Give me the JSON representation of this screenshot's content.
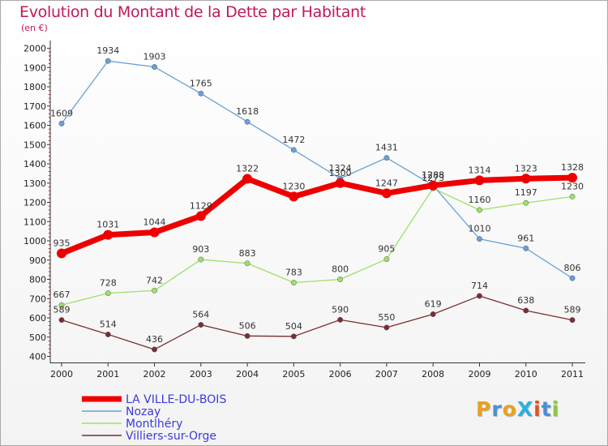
{
  "title": "Evolution du Montant de la Dette par Habitant",
  "subtitle": "(en €)",
  "logo": {
    "text": "ProXiti",
    "letter_colors": [
      "#e8a21c",
      "#4a8fd6",
      "#e8a21c",
      "#2bb0e0",
      "#e84f1c",
      "#4a8fd6",
      "#8cc63f"
    ]
  },
  "chart_data": {
    "type": "line",
    "x": [
      "2000",
      "2001",
      "2002",
      "2003",
      "2004",
      "2005",
      "2006",
      "2007",
      "2008",
      "2009",
      "2010",
      "2011"
    ],
    "ylim": [
      400,
      2000
    ],
    "yticks": [
      400,
      500,
      600,
      700,
      800,
      900,
      1000,
      1100,
      1200,
      1300,
      1400,
      1500,
      1600,
      1700,
      1800,
      1900,
      2000
    ],
    "grid": false,
    "legend_position": "bottom-left",
    "series": [
      {
        "name": "Villiers-sur-Orge",
        "color": "#7a2e32",
        "values": [
          589,
          514,
          436,
          564,
          506,
          504,
          590,
          550,
          619,
          714,
          638,
          589
        ]
      },
      {
        "name": "Montlhéry",
        "color": "#9ee06a",
        "values": [
          667,
          728,
          742,
          903,
          883,
          783,
          800,
          905,
          1273,
          1160,
          1197,
          1230
        ]
      },
      {
        "name": "Nozay",
        "color": "#6a9fd8",
        "values": [
          1609,
          1934,
          1903,
          1765,
          1618,
          1472,
          1324,
          1431,
          1288,
          1010,
          961,
          806
        ]
      },
      {
        "name": "LA VILLE-DU-BOIS",
        "color": "#ee0000",
        "values": [
          935,
          1031,
          1044,
          1129,
          1322,
          1230,
          1300,
          1247,
          1288,
          1314,
          1323,
          1328
        ]
      }
    ]
  }
}
